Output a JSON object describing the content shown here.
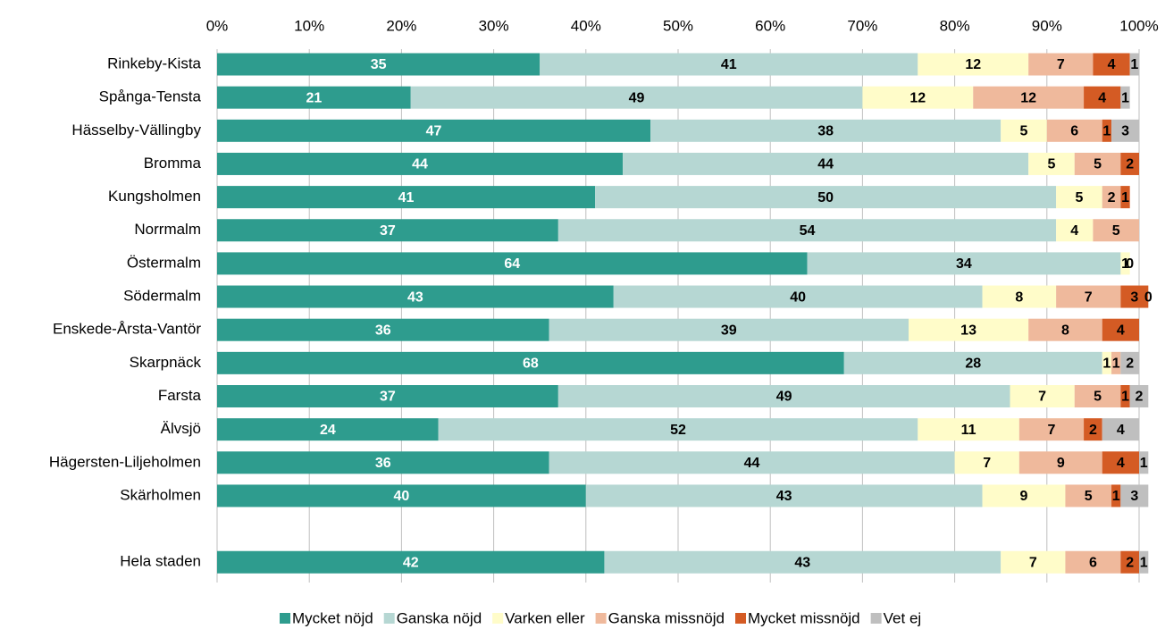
{
  "chart_data": {
    "type": "bar",
    "orientation": "horizontal",
    "stacked": true,
    "categories": [
      "Rinkeby-Kista",
      "Spånga-Tensta",
      "Hässelby-Vällingby",
      "Bromma",
      "Kungsholmen",
      "Norrmalm",
      "Östermalm",
      "Södermalm",
      "Enskede-Årsta-Vantör",
      "Skarpnäck",
      "Farsta",
      "Älvsjö",
      "Hägersten-Liljeholmen",
      "Skärholmen",
      null,
      "Hela staden"
    ],
    "series": [
      {
        "name": "Mycket nöjd",
        "color": "#2e9c8e",
        "values": [
          35,
          21,
          47,
          44,
          41,
          37,
          64,
          43,
          36,
          68,
          37,
          24,
          36,
          40,
          null,
          42
        ]
      },
      {
        "name": "Ganska nöjd",
        "color": "#b6d7d3",
        "values": [
          41,
          49,
          38,
          44,
          50,
          54,
          34,
          40,
          39,
          28,
          49,
          52,
          44,
          43,
          null,
          43
        ]
      },
      {
        "name": "Varken eller",
        "color": "#fffcc9",
        "values": [
          12,
          12,
          5,
          5,
          5,
          4,
          1,
          8,
          13,
          1,
          7,
          11,
          7,
          9,
          null,
          7
        ]
      },
      {
        "name": "Ganska missnöjd",
        "color": "#efb99c",
        "values": [
          7,
          12,
          6,
          5,
          2,
          5,
          0,
          7,
          8,
          1,
          5,
          7,
          9,
          5,
          null,
          6
        ]
      },
      {
        "name": "Mycket missnöjd",
        "color": "#d45b24",
        "values": [
          4,
          4,
          1,
          2,
          1,
          null,
          null,
          3,
          4,
          null,
          1,
          2,
          4,
          1,
          null,
          2
        ]
      },
      {
        "name": "Vet ej",
        "color": "#bfbfbf",
        "values": [
          1,
          1,
          3,
          null,
          null,
          null,
          null,
          0,
          null,
          2,
          2,
          4,
          1,
          3,
          null,
          1
        ]
      }
    ],
    "xlim": [
      0,
      100
    ],
    "xticks": [
      {
        "value": 0,
        "label": "0%"
      },
      {
        "value": 10,
        "label": "10%"
      },
      {
        "value": 20,
        "label": "20%"
      },
      {
        "value": 30,
        "label": "30%"
      },
      {
        "value": 40,
        "label": "40%"
      },
      {
        "value": 50,
        "label": "50%"
      },
      {
        "value": 60,
        "label": "60%"
      },
      {
        "value": 70,
        "label": "70%"
      },
      {
        "value": 80,
        "label": "80%"
      },
      {
        "value": 90,
        "label": "90%"
      },
      {
        "value": 100,
        "label": "100%"
      }
    ],
    "grid": true,
    "legend": "bottom"
  }
}
